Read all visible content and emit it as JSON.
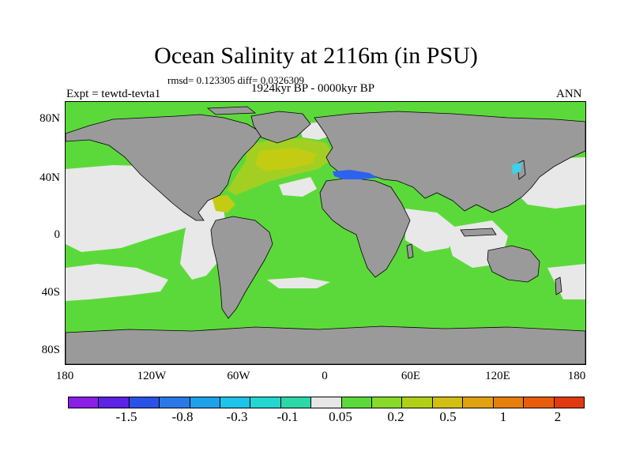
{
  "title": "Ocean Salinity at 2116m (in PSU)",
  "stats_line": "rmsd= 0.123305 diff= 0.0326309",
  "period": "1924kyr BP - 0000kyr BP",
  "experiment": "Expt = tewtd-tevta1",
  "season": "ANN",
  "lat_labels": [
    "80N",
    "40N",
    "0",
    "40S",
    "80S"
  ],
  "lon_labels": [
    "180",
    "120W",
    "60W",
    "0",
    "60E",
    "120E",
    "180"
  ],
  "colors": {
    "land": "#9a9a9a",
    "neutral": "#e8e8e8",
    "ocean_main": "#5cd93a",
    "atlantic_north": "#a3cf23",
    "atlantic_core": "#c3cc12",
    "mediterranean": "#2d62f0",
    "japan_sea": "#3cd2e8"
  },
  "colorbar": {
    "colors": [
      "#8a1fe6",
      "#5c22e6",
      "#2b52e8",
      "#2a78e8",
      "#1ea1e8",
      "#1ec3ea",
      "#23d6d0",
      "#2ad8a8",
      "#e6e6e6",
      "#5cd93a",
      "#88d928",
      "#b0d018",
      "#d1bf12",
      "#e0a20e",
      "#e77f0c",
      "#e85d0c",
      "#e23a10"
    ],
    "labels": [
      "-1.5",
      "-0.8",
      "-0.3",
      "-0.1",
      "0.05",
      "0.2",
      "0.5",
      "1",
      "2"
    ]
  }
}
